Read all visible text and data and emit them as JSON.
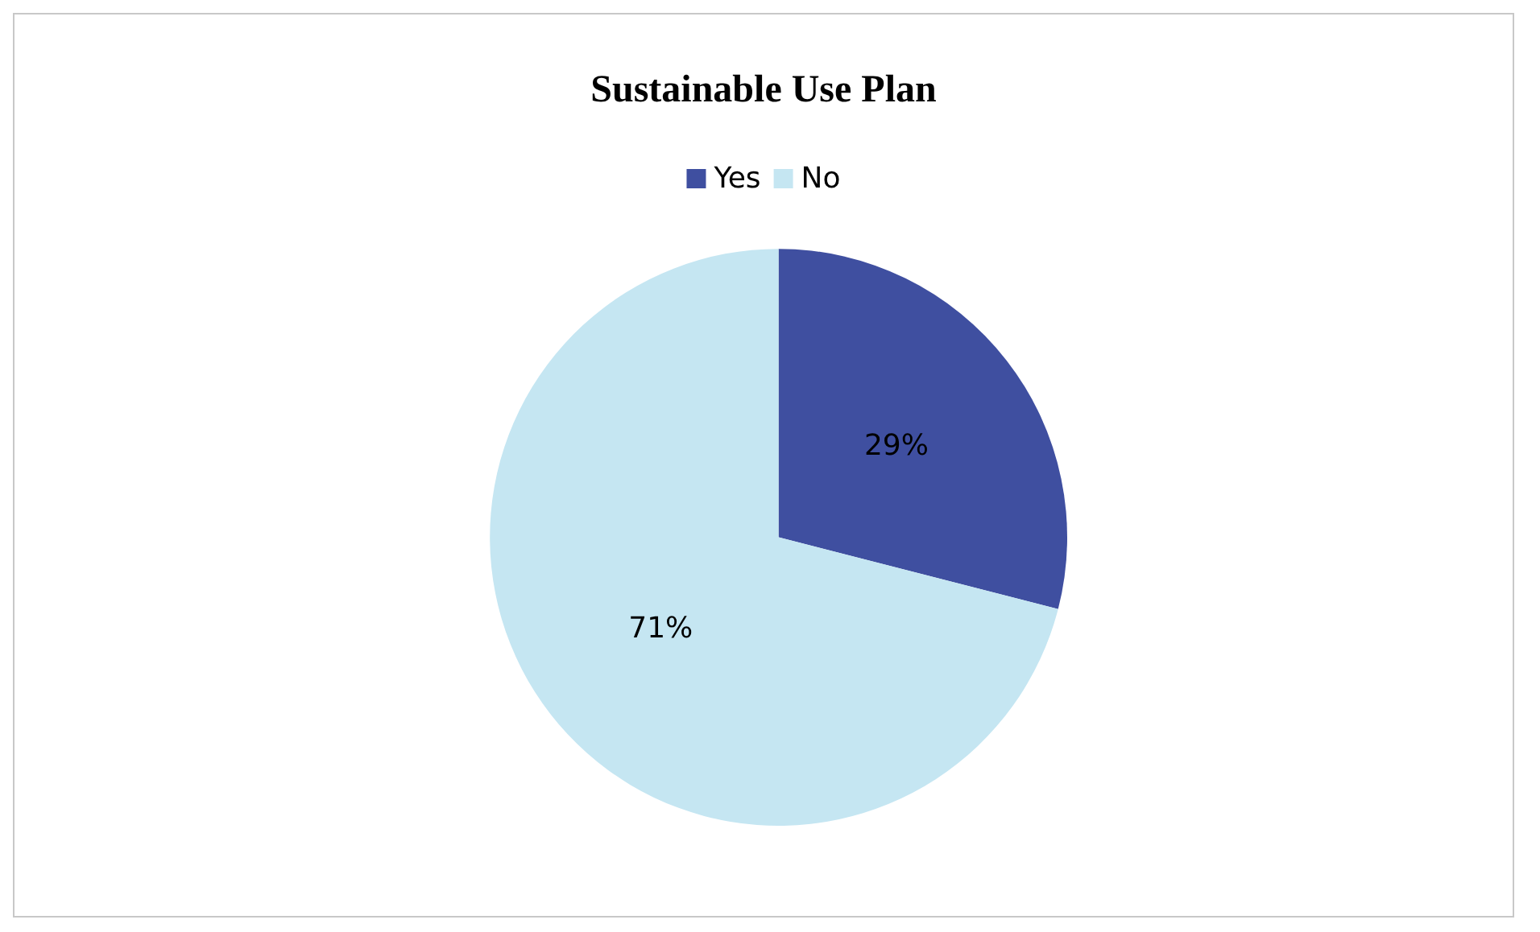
{
  "chart_data": {
    "type": "pie",
    "title": "Sustainable Use Plan",
    "categories": [
      "Yes",
      "No"
    ],
    "values": [
      29,
      71
    ],
    "colors": [
      "#3f4fa0",
      "#c5e6f2"
    ],
    "value_labels": [
      "29%",
      "71%"
    ],
    "legend": "top"
  }
}
